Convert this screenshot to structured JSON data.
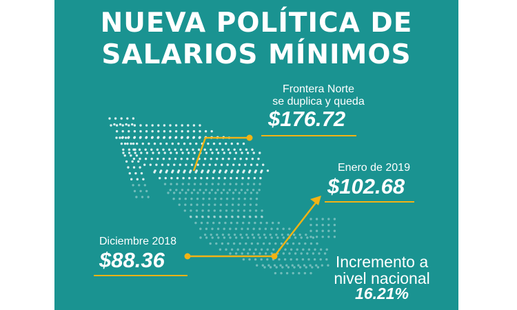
{
  "title": {
    "line1": "NUEVA POLÍTICA DE",
    "line2": "SALARIOS MÍNIMOS"
  },
  "frontera": {
    "label_line1": "Frontera Norte",
    "label_line2": "se duplica y queda",
    "value": "$176.72"
  },
  "enero": {
    "label": "Enero de 2019",
    "value": "$102.68"
  },
  "diciembre": {
    "label": "Diciembre 2018",
    "value": "$88.36"
  },
  "incremento": {
    "line1": "Incremento a",
    "line2": "nivel nacional",
    "percent": "16.21%"
  },
  "colors": {
    "background": "#1a9391",
    "accent": "#f2b315",
    "text": "#ffffff"
  }
}
